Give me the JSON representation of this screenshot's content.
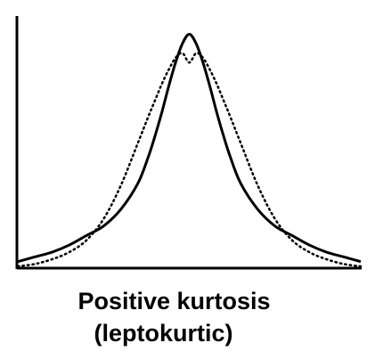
{
  "caption": {
    "line1": "Positive kurtosis",
    "line2": "(leptokurtic)"
  },
  "chart_data": {
    "type": "line",
    "title": "Positive kurtosis (leptokurtic)",
    "xlabel": "",
    "ylabel": "",
    "xlim": [
      -5,
      5
    ],
    "ylim": [
      0,
      1
    ],
    "grid": false,
    "axes": [
      "left",
      "bottom"
    ],
    "series": [
      {
        "style": "solid",
        "color": "#000000",
        "x": [
          -5,
          -4.5,
          -4,
          -3.5,
          -3,
          -2.5,
          -2,
          -1.5,
          -1.2,
          -1,
          -0.8,
          -0.6,
          -0.4,
          -0.2,
          0,
          0.2,
          0.4,
          0.6,
          0.8,
          1,
          1.2,
          1.5,
          2,
          2.5,
          3,
          3.5,
          4,
          4.5,
          5
        ],
        "y": [
          0.02,
          0.04,
          0.06,
          0.09,
          0.13,
          0.17,
          0.24,
          0.35,
          0.46,
          0.55,
          0.65,
          0.76,
          0.86,
          0.94,
          0.98,
          0.94,
          0.86,
          0.76,
          0.65,
          0.55,
          0.46,
          0.35,
          0.24,
          0.17,
          0.13,
          0.09,
          0.06,
          0.04,
          0.02
        ]
      },
      {
        "style": "dotted",
        "color": "#000000",
        "x": [
          -5,
          -4.5,
          -4,
          -3.5,
          -3,
          -2.5,
          -2,
          -1.5,
          -1.2,
          -1,
          -0.8,
          -0.6,
          -0.4,
          -0.2,
          0,
          0.2,
          0.4,
          0.6,
          0.8,
          1,
          1.2,
          1.5,
          2,
          2.5,
          3,
          3.5,
          4,
          4.5,
          5
        ],
        "y": [
          0.0,
          0.01,
          0.03,
          0.06,
          0.11,
          0.2,
          0.34,
          0.52,
          0.63,
          0.7,
          0.77,
          0.83,
          0.88,
          0.9,
          0.86,
          0.9,
          0.88,
          0.83,
          0.77,
          0.7,
          0.63,
          0.52,
          0.34,
          0.2,
          0.11,
          0.06,
          0.03,
          0.01,
          0.0
        ]
      }
    ]
  }
}
